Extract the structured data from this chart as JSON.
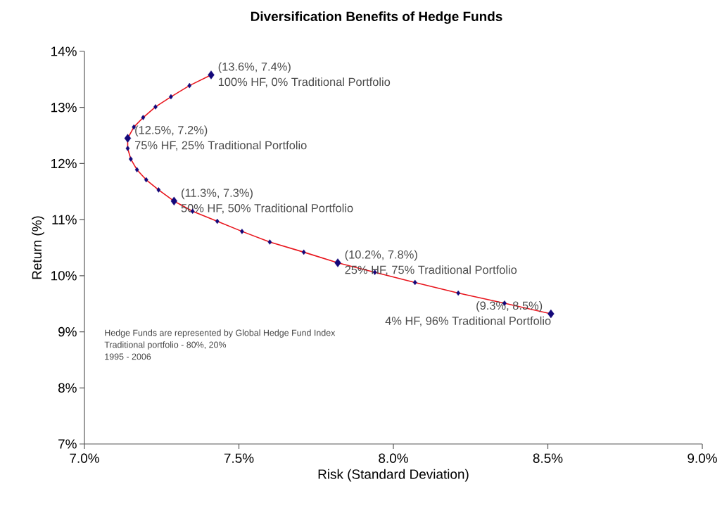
{
  "chart_data": {
    "type": "line",
    "title": "Diversification Benefits of Hedge Funds",
    "xlabel": "Risk (Standard Deviation)",
    "ylabel": "Return (%)",
    "x": [
      7.41,
      7.34,
      7.28,
      7.23,
      7.19,
      7.16,
      7.14,
      7.14,
      7.15,
      7.17,
      7.2,
      7.24,
      7.29,
      7.35,
      7.43,
      7.51,
      7.6,
      7.71,
      7.82,
      7.94,
      8.07,
      8.21,
      8.36,
      8.51
    ],
    "series": [
      {
        "color": "#e8141c",
        "values": [
          13.58,
          13.39,
          13.19,
          13.01,
          12.82,
          12.65,
          12.45,
          12.27,
          12.08,
          11.89,
          11.71,
          11.53,
          11.33,
          11.15,
          10.97,
          10.79,
          10.6,
          10.42,
          10.23,
          10.06,
          9.88,
          9.69,
          9.51,
          9.32
        ]
      },
      {
        "type": "scatter",
        "color": "#14087a",
        "marker": "diamond",
        "values": [
          13.58,
          13.39,
          13.19,
          13.01,
          12.82,
          12.65,
          12.45,
          12.27,
          12.08,
          11.89,
          11.71,
          11.53,
          11.33,
          11.15,
          10.97,
          10.79,
          10.6,
          10.42,
          10.23,
          10.06,
          9.88,
          9.69,
          9.51,
          9.32
        ],
        "sizes": [
          1,
          0.35,
          0.35,
          0.35,
          0.35,
          0.35,
          1,
          0.35,
          0.35,
          0.35,
          0.35,
          0.35,
          1,
          0.35,
          0.35,
          0.35,
          0.35,
          0.35,
          1,
          0.35,
          0.35,
          0.35,
          0.35,
          1
        ]
      }
    ],
    "xlim": [
      7.0,
      9.0
    ],
    "ylim": [
      7,
      14
    ],
    "xticks": [
      {
        "value": 7.0,
        "label": "7.0%"
      },
      {
        "value": 7.5,
        "label": "7.5%"
      },
      {
        "value": 8.0,
        "label": "8.0%"
      },
      {
        "value": 8.5,
        "label": "8.5%"
      },
      {
        "value": 9.0,
        "label": "9.0%"
      }
    ],
    "yticks": [
      {
        "value": 7,
        "label": "7%"
      },
      {
        "value": 8,
        "label": "8%"
      },
      {
        "value": 9,
        "label": "9%"
      },
      {
        "value": 10,
        "label": "10%"
      },
      {
        "value": 11,
        "label": "11%"
      },
      {
        "value": 12,
        "label": "12%"
      },
      {
        "value": 13,
        "label": "13%"
      },
      {
        "value": 14,
        "label": "14%"
      }
    ],
    "grid": false,
    "annotations": [
      {
        "text": "(13.6%, 7.4%)",
        "x": 7.41,
        "y": 13.58
      },
      {
        "text": "100% HF, 0% Traditional Portfolio",
        "x": 7.41,
        "y": 13.58
      },
      {
        "text": "(12.5%, 7.2%)",
        "x": 7.14,
        "y": 12.45
      },
      {
        "text": "75% HF, 25% Traditional Portfolio",
        "x": 7.14,
        "y": 12.45
      },
      {
        "text": "(11.3%, 7.3%)",
        "x": 7.29,
        "y": 11.33
      },
      {
        "text": "50% HF, 50% Traditional Portfolio",
        "x": 7.29,
        "y": 11.33
      },
      {
        "text": "(10.2%, 7.8%)",
        "x": 7.82,
        "y": 10.23
      },
      {
        "text": "25% HF, 75% Traditional Portfolio",
        "x": 7.82,
        "y": 10.23
      },
      {
        "text": "(9.3%, 8.5%)",
        "x": 8.51,
        "y": 9.32
      },
      {
        "text": "4% HF, 96% Traditional Portfolio",
        "x": 8.51,
        "y": 9.32
      },
      "Hedge Funds are represented by Global Hedge Fund Index",
      "Traditional portfolio - 80%, 20%",
      "1995 - 2006"
    ]
  }
}
